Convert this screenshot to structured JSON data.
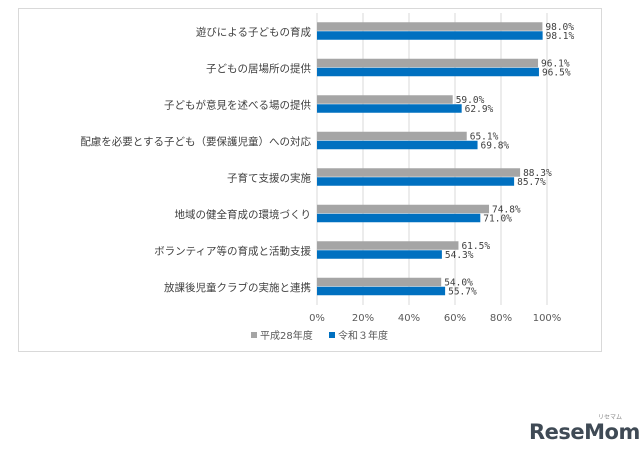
{
  "chart_data": {
    "type": "bar",
    "orientation": "horizontal",
    "categories": [
      "遊びによる子どもの育成",
      "子どもの居場所の提供",
      "子どもが意見を述べる場の提供",
      "配慮を必要とする子ども（要保護児童）への対応",
      "子育て支援の実施",
      "地域の健全育成の環境づくり",
      "ボランティア等の育成と活動支援",
      "放課後児童クラブの実施と連携"
    ],
    "series": [
      {
        "name": "平成28年度",
        "color": "#a5a5a5",
        "values": [
          98.0,
          96.1,
          59.0,
          65.1,
          88.3,
          74.8,
          61.5,
          54.0
        ],
        "labels": [
          "98.0%",
          "96.1%",
          "59.0%",
          "65.1%",
          "88.3%",
          "74.8%",
          "61.5%",
          "54.0%"
        ]
      },
      {
        "name": "令和３年度",
        "color": "#0070c0",
        "values": [
          98.1,
          96.5,
          62.9,
          69.8,
          85.7,
          71.0,
          54.3,
          55.7
        ],
        "labels": [
          "98.1%",
          "96.5%",
          "62.9%",
          "69.8%",
          "85.7%",
          "71.0%",
          "54.3%",
          "55.7%"
        ]
      }
    ],
    "x_ticks": [
      "0%",
      "20%",
      "40%",
      "60%",
      "80%",
      "100%"
    ],
    "xlim": [
      0,
      100
    ],
    "grid": true,
    "legend_position": "bottom"
  },
  "brand": {
    "name": "ReseMom",
    "sub": "リセマム"
  }
}
